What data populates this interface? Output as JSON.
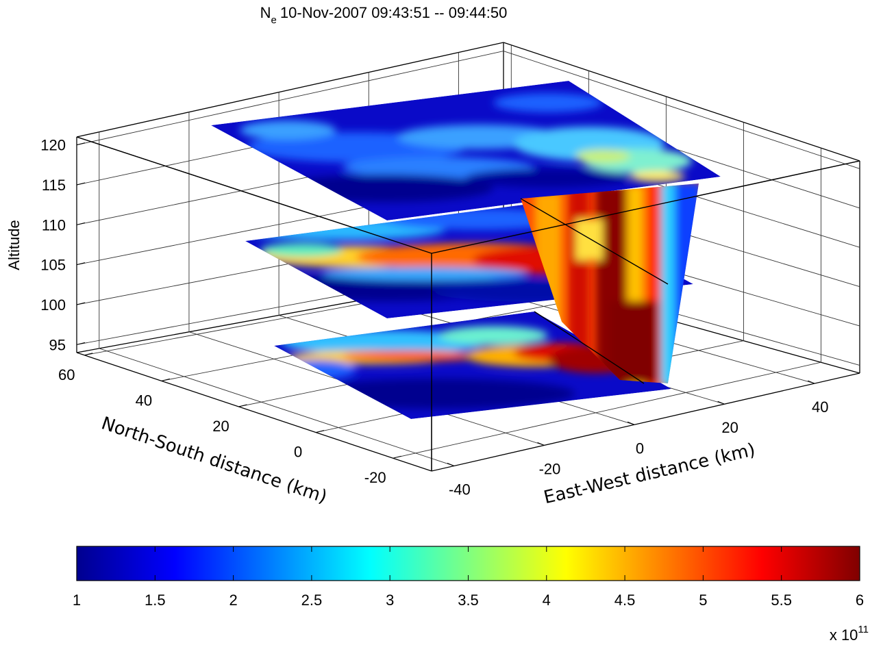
{
  "chart_data": {
    "type": "heatmap",
    "title_symbol": "N",
    "title_subscript": "e",
    "title_rest": "10-Nov-2007 09:43:51 -- 09:44:50",
    "zlabel": "Altitude",
    "xlabel": "East-West distance (km)",
    "ylabel": "North-South distance (km)",
    "z_ticks": [
      95,
      100,
      105,
      110,
      115,
      120
    ],
    "zlim": [
      94,
      121
    ],
    "x_ticks": [
      -40,
      -20,
      0,
      20,
      40
    ],
    "xlim": [
      -45,
      50
    ],
    "y_ticks": [
      -20,
      0,
      20,
      40,
      60
    ],
    "ylim": [
      -30,
      62
    ],
    "grid": true,
    "slices": [
      {
        "kind": "horizontal",
        "altitude": 120,
        "ne_range_1e11": [
          1,
          3.8
        ]
      },
      {
        "kind": "horizontal",
        "altitude": 106,
        "ne_range_1e11": [
          1,
          6
        ]
      },
      {
        "kind": "horizontal",
        "altitude": 95,
        "ne_range_1e11": [
          1,
          6
        ]
      },
      {
        "kind": "vertical",
        "plane": "East-West",
        "altitude_range": [
          95,
          120
        ],
        "ne_range_1e11": [
          1,
          6
        ]
      }
    ],
    "colorbar": {
      "min": 1,
      "max": 6,
      "ticks": [
        "1",
        "1.5",
        "2",
        "2.5",
        "3",
        "3.5",
        "4",
        "4.5",
        "5",
        "5.5",
        "6"
      ],
      "multiplier_base": "x 10",
      "multiplier_exp": "11",
      "colormap": "jet"
    }
  }
}
